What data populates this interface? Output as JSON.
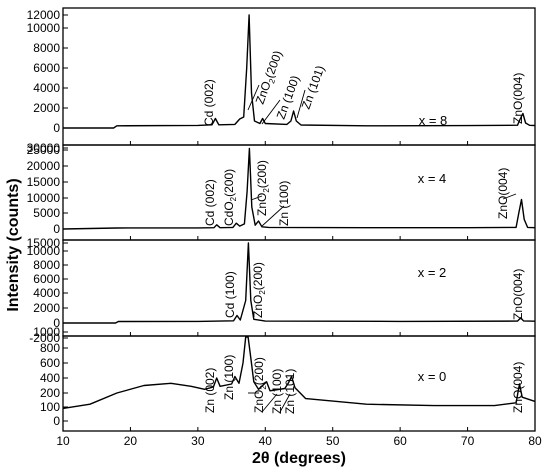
{
  "chart_data": {
    "type": "line",
    "xlabel": "2θ (degrees)",
    "ylabel": "Intensity (counts)",
    "xlim": [
      10,
      80
    ],
    "x_ticks": [
      "10",
      "20",
      "30",
      "40",
      "50",
      "60",
      "70",
      "80"
    ],
    "grid": false,
    "legend": "none",
    "line_color": "#000000",
    "panels": [
      {
        "label": "x = 8",
        "ylim": [
          -800,
          12000
        ],
        "y_ticks": [
          "0",
          "2000",
          "4000",
          "6000",
          "8000",
          "10000",
          "12000"
        ],
        "points": [
          [
            10,
            0
          ],
          [
            17.5,
            0
          ],
          [
            18,
            220
          ],
          [
            30,
            260
          ],
          [
            32.1,
            320
          ],
          [
            32.6,
            950
          ],
          [
            33.1,
            320
          ],
          [
            35.5,
            360
          ],
          [
            36.2,
            900
          ],
          [
            36.8,
            1100
          ],
          [
            37.25,
            6000
          ],
          [
            37.6,
            12000
          ],
          [
            37.95,
            3500
          ],
          [
            38.4,
            700
          ],
          [
            39.2,
            450
          ],
          [
            39.6,
            950
          ],
          [
            40.0,
            450
          ],
          [
            43.2,
            360
          ],
          [
            43.8,
            700
          ],
          [
            44.2,
            1700
          ],
          [
            44.6,
            700
          ],
          [
            45.3,
            300
          ],
          [
            55,
            220
          ],
          [
            70,
            240
          ],
          [
            77.4,
            280
          ],
          [
            77.8,
            900
          ],
          [
            78.2,
            1450
          ],
          [
            78.6,
            500
          ],
          [
            79.2,
            270
          ],
          [
            80,
            250
          ]
        ],
        "annotations": [
          "Cd (002)",
          "ZnO2(200)",
          "Zn (100)",
          "Zn (101)",
          "ZnO(004)"
        ]
      },
      {
        "label": "x = 4",
        "ylim": [
          -1600,
          30000
        ],
        "y_ticks": [
          "0",
          "5000",
          "10000",
          "15000",
          "20000",
          "25000",
          "30000"
        ],
        "points": [
          [
            10,
            0
          ],
          [
            18,
            300
          ],
          [
            30,
            350
          ],
          [
            32.4,
            400
          ],
          [
            32.8,
            1300
          ],
          [
            33.3,
            400
          ],
          [
            35.2,
            500
          ],
          [
            35.7,
            1800
          ],
          [
            36.2,
            900
          ],
          [
            36.9,
            1600
          ],
          [
            37.3,
            12000
          ],
          [
            37.65,
            29000
          ],
          [
            38.0,
            7000
          ],
          [
            38.5,
            1200
          ],
          [
            39.0,
            2500
          ],
          [
            39.5,
            700
          ],
          [
            40.5,
            500
          ],
          [
            55,
            400
          ],
          [
            70,
            400
          ],
          [
            77.2,
            500
          ],
          [
            77.6,
            5000
          ],
          [
            78.0,
            9500
          ],
          [
            78.4,
            3000
          ],
          [
            78.9,
            500
          ],
          [
            80,
            400
          ]
        ],
        "annotations": [
          "Cd (002)",
          "CdO2(200)",
          "ZnO2(200)",
          "Zn (100)",
          "ZnO(004)"
        ]
      },
      {
        "label": "x = 2",
        "ylim": [
          -1000,
          15000
        ],
        "y_ticks": [
          "0",
          "2000",
          "4000",
          "6000",
          "8000",
          "10000",
          "15000"
        ],
        "points": [
          [
            10,
            0
          ],
          [
            17.8,
            0
          ],
          [
            18.2,
            200
          ],
          [
            30,
            220
          ],
          [
            35.3,
            300
          ],
          [
            35.8,
            1000
          ],
          [
            36.3,
            400
          ],
          [
            37.1,
            3000
          ],
          [
            37.5,
            15000
          ],
          [
            37.85,
            3000
          ],
          [
            38.3,
            500
          ],
          [
            40,
            260
          ],
          [
            60,
            220
          ],
          [
            77.4,
            250
          ],
          [
            77.9,
            700
          ],
          [
            78.3,
            280
          ],
          [
            80,
            240
          ]
        ],
        "annotations": [
          "Cd (100)",
          "ZnO2(200)",
          "ZnO(004)"
        ]
      },
      {
        "label": "x = 0",
        "ylim": [
          -2000,
          1100
        ],
        "y_ticks": [
          "-2000",
          "0",
          "100",
          "200",
          "400",
          "600",
          "800",
          "1000"
        ],
        "points": [
          [
            10,
            90
          ],
          [
            14,
            120
          ],
          [
            18,
            200
          ],
          [
            22,
            300
          ],
          [
            26,
            330
          ],
          [
            29,
            290
          ],
          [
            31,
            250
          ],
          [
            32.3,
            280
          ],
          [
            32.8,
            400
          ],
          [
            33.3,
            290
          ],
          [
            35.0,
            320
          ],
          [
            35.5,
            420
          ],
          [
            36.1,
            330
          ],
          [
            36.7,
            600
          ],
          [
            37.1,
            1600
          ],
          [
            37.45,
            1800
          ],
          [
            37.8,
            700
          ],
          [
            38.3,
            350
          ],
          [
            39.0,
            250
          ],
          [
            40.2,
            350
          ],
          [
            40.7,
            230
          ],
          [
            42.9,
            260
          ],
          [
            43.4,
            330
          ],
          [
            43.9,
            420
          ],
          [
            44.4,
            270
          ],
          [
            46,
            160
          ],
          [
            55,
            120
          ],
          [
            65,
            110
          ],
          [
            74,
            110
          ],
          [
            77.2,
            130
          ],
          [
            77.7,
            320
          ],
          [
            78.1,
            170
          ],
          [
            80,
            140
          ]
        ],
        "annotations": [
          "Zn (002)",
          "Zn (100)",
          "ZnO2(200)",
          "Zn (100)",
          "Zn (101)",
          "ZnO(004)"
        ]
      }
    ]
  }
}
